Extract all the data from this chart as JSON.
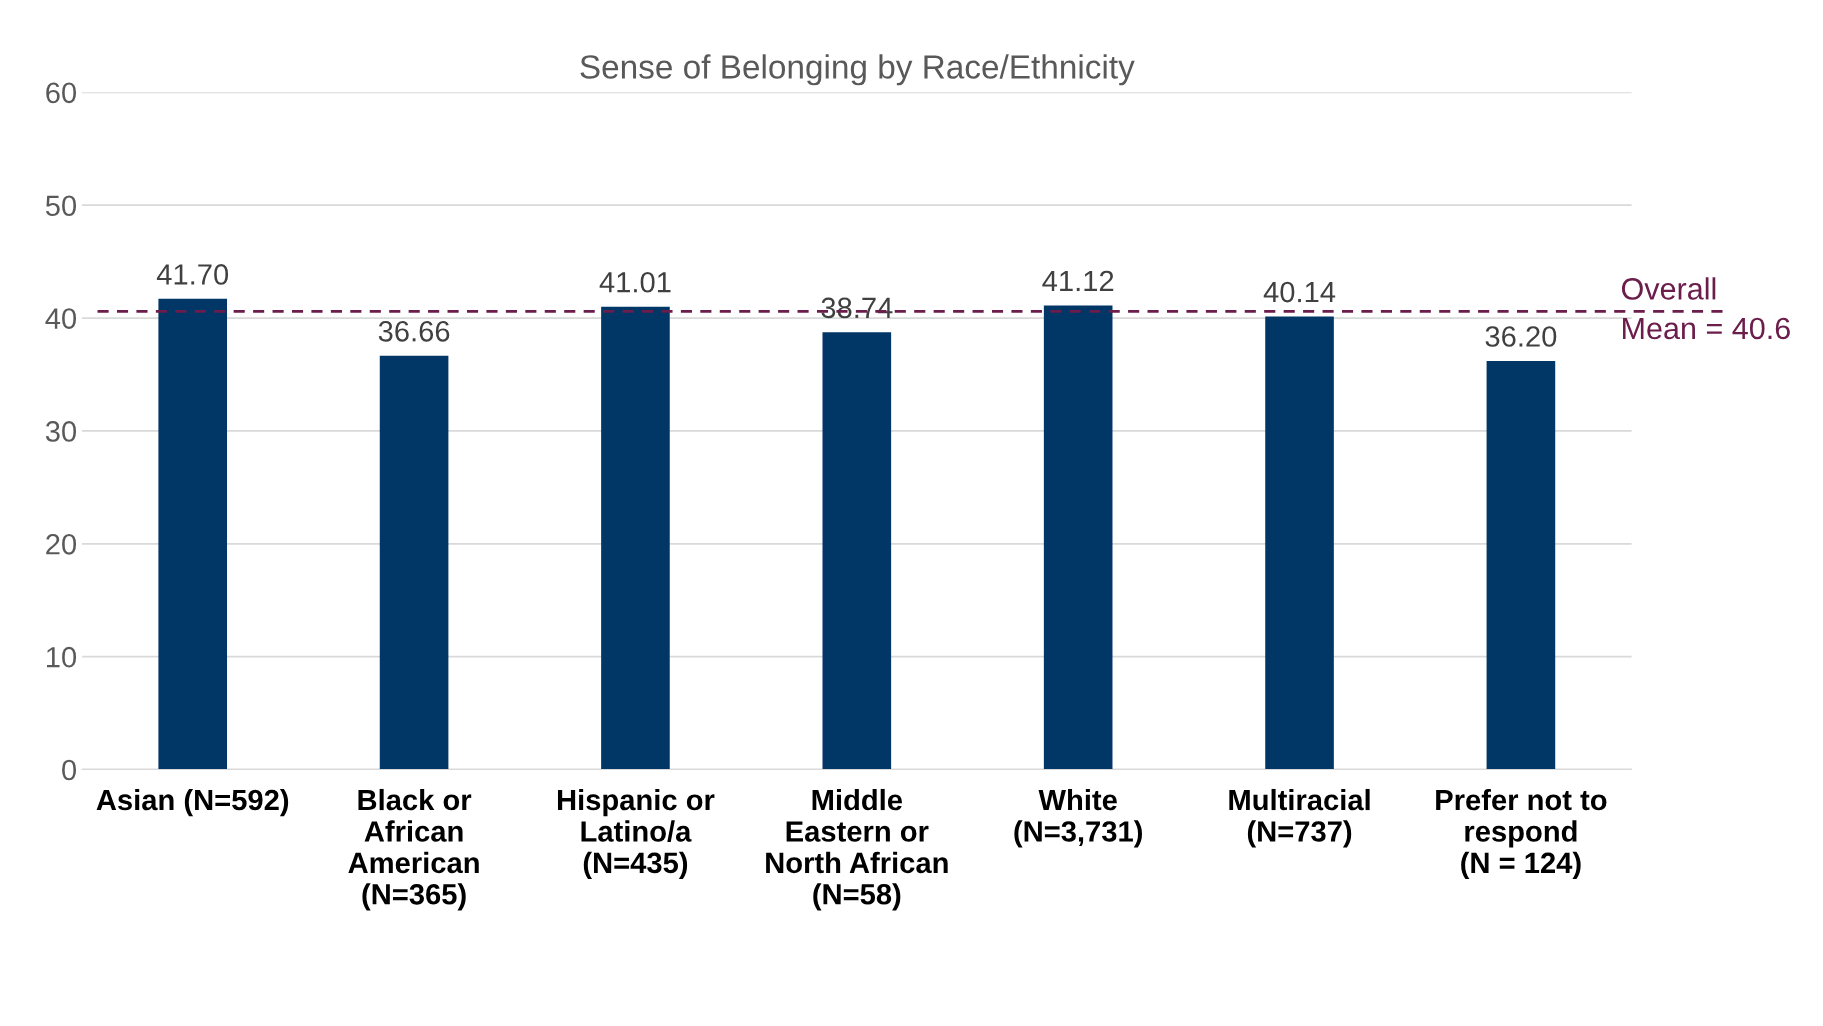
{
  "chart_data": {
    "type": "bar",
    "title": "Sense of Belonging by Race/Ethnicity",
    "categories": [
      "Asian (N=592)",
      "Black or\nAfrican\nAmerican\n(N=365)",
      "Hispanic or\nLatino/a\n(N=435)",
      "Middle\nEastern or\nNorth African\n(N=58)",
      "White\n(N=3,731)",
      "Multiracial\n(N=737)",
      "Prefer not to\nrespond\n(N = 124)"
    ],
    "values": [
      41.7,
      36.66,
      41.01,
      38.74,
      41.12,
      40.14,
      36.2
    ],
    "value_labels": [
      "41.70",
      "36.66",
      "41.01",
      "38.74",
      "41.12",
      "40.14",
      "36.20"
    ],
    "color": "#003767",
    "ylim": [
      0,
      60
    ],
    "yticks": [
      0,
      10,
      20,
      30,
      40,
      50,
      60
    ],
    "grid": "y",
    "legend": false,
    "ref_lines": [
      {
        "axis": "y",
        "value": 40.6,
        "label": "Overall\nMean = 40.6",
        "color": "#6b1d4b",
        "line_style": "dashed"
      }
    ]
  }
}
